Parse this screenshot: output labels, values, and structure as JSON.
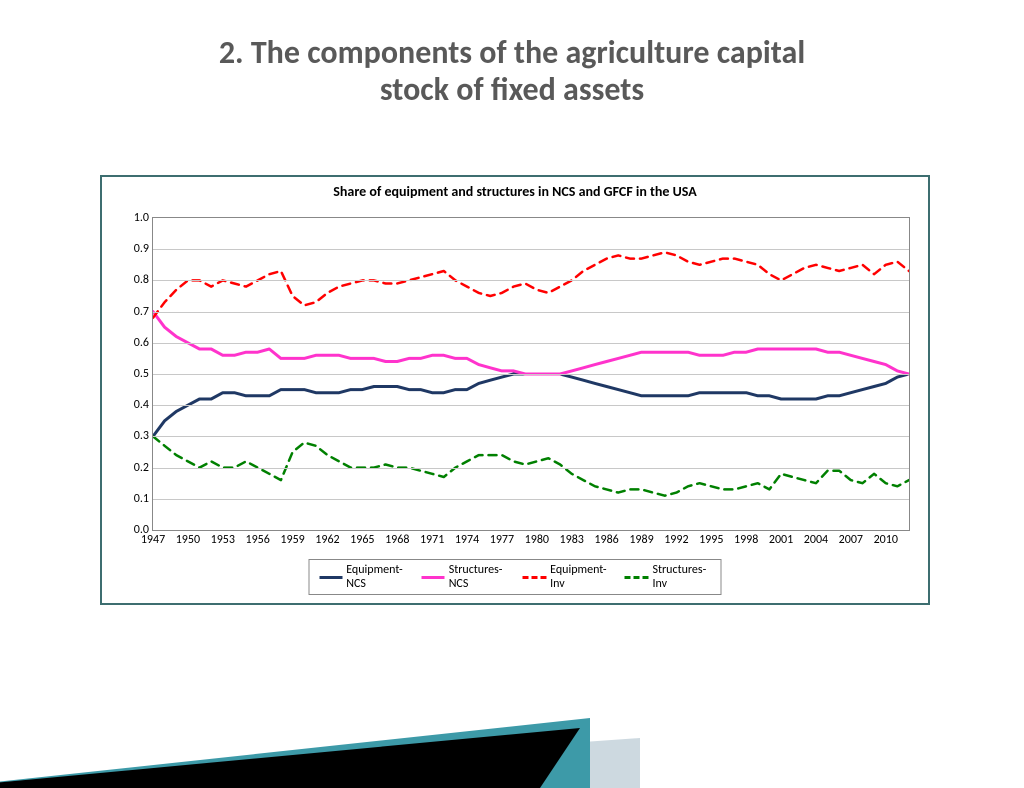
{
  "slide": {
    "title_line1": "2. The components of the agriculture capital",
    "title_line2": "stock of fixed assets",
    "title_fontsize": 32,
    "title_color": "#595959"
  },
  "chart": {
    "type": "line",
    "title": "Share of equipment and structures in NCS and GFCF in the USA",
    "title_fontsize": 14,
    "background_color": "#ffffff",
    "border_color": "#3d6e70",
    "grid_color": "#c8c8c8",
    "plot_border_color": "#888888",
    "x": {
      "min": 1947,
      "max": 2012,
      "tick_start": 1947,
      "tick_step": 3,
      "tick_end": 2010,
      "label_fontsize": 12
    },
    "y": {
      "min": 0.0,
      "max": 1.0,
      "tick_step": 0.1,
      "decimals": 1,
      "label_fontsize": 12
    },
    "years": [
      1947,
      1948,
      1949,
      1950,
      1951,
      1952,
      1953,
      1954,
      1955,
      1956,
      1957,
      1958,
      1959,
      1960,
      1961,
      1962,
      1963,
      1964,
      1965,
      1966,
      1967,
      1968,
      1969,
      1970,
      1971,
      1972,
      1973,
      1974,
      1975,
      1976,
      1977,
      1978,
      1979,
      1980,
      1981,
      1982,
      1983,
      1984,
      1985,
      1986,
      1987,
      1988,
      1989,
      1990,
      1991,
      1992,
      1993,
      1994,
      1995,
      1996,
      1997,
      1998,
      1999,
      2000,
      2001,
      2002,
      2003,
      2004,
      2005,
      2006,
      2007,
      2008,
      2009,
      2010,
      2011,
      2012
    ],
    "series": [
      {
        "name": "Equipment-NCS",
        "color": "#1f3864",
        "width": 3,
        "dash": "none",
        "values": [
          0.3,
          0.35,
          0.38,
          0.4,
          0.42,
          0.42,
          0.44,
          0.44,
          0.43,
          0.43,
          0.43,
          0.45,
          0.45,
          0.45,
          0.44,
          0.44,
          0.44,
          0.45,
          0.45,
          0.46,
          0.46,
          0.46,
          0.45,
          0.45,
          0.44,
          0.44,
          0.45,
          0.45,
          0.47,
          0.48,
          0.49,
          0.5,
          0.5,
          0.5,
          0.5,
          0.5,
          0.49,
          0.48,
          0.47,
          0.46,
          0.45,
          0.44,
          0.43,
          0.43,
          0.43,
          0.43,
          0.43,
          0.44,
          0.44,
          0.44,
          0.44,
          0.44,
          0.43,
          0.43,
          0.42,
          0.42,
          0.42,
          0.42,
          0.43,
          0.43,
          0.44,
          0.45,
          0.46,
          0.47,
          0.49,
          0.5
        ]
      },
      {
        "name": "Structures-NCS",
        "color": "#ff33cc",
        "width": 3,
        "dash": "none",
        "values": [
          0.7,
          0.65,
          0.62,
          0.6,
          0.58,
          0.58,
          0.56,
          0.56,
          0.57,
          0.57,
          0.58,
          0.55,
          0.55,
          0.55,
          0.56,
          0.56,
          0.56,
          0.55,
          0.55,
          0.55,
          0.54,
          0.54,
          0.55,
          0.55,
          0.56,
          0.56,
          0.55,
          0.55,
          0.53,
          0.52,
          0.51,
          0.51,
          0.5,
          0.5,
          0.5,
          0.5,
          0.51,
          0.52,
          0.53,
          0.54,
          0.55,
          0.56,
          0.57,
          0.57,
          0.57,
          0.57,
          0.57,
          0.56,
          0.56,
          0.56,
          0.57,
          0.57,
          0.58,
          0.58,
          0.58,
          0.58,
          0.58,
          0.58,
          0.57,
          0.57,
          0.56,
          0.55,
          0.54,
          0.53,
          0.51,
          0.5
        ]
      },
      {
        "name": "Equipment-Inv",
        "color": "#ff0000",
        "width": 2.5,
        "dash": "8,6",
        "values": [
          0.68,
          0.73,
          0.77,
          0.8,
          0.8,
          0.78,
          0.8,
          0.79,
          0.78,
          0.8,
          0.82,
          0.83,
          0.75,
          0.72,
          0.73,
          0.76,
          0.78,
          0.79,
          0.8,
          0.8,
          0.79,
          0.79,
          0.8,
          0.81,
          0.82,
          0.83,
          0.8,
          0.78,
          0.76,
          0.75,
          0.76,
          0.78,
          0.79,
          0.77,
          0.76,
          0.78,
          0.8,
          0.83,
          0.85,
          0.87,
          0.88,
          0.87,
          0.87,
          0.88,
          0.89,
          0.88,
          0.86,
          0.85,
          0.86,
          0.87,
          0.87,
          0.86,
          0.85,
          0.82,
          0.8,
          0.82,
          0.84,
          0.85,
          0.84,
          0.83,
          0.84,
          0.85,
          0.82,
          0.85,
          0.86,
          0.83
        ]
      },
      {
        "name": "Structures-Inv",
        "color": "#008000",
        "width": 2.5,
        "dash": "8,6",
        "values": [
          0.3,
          0.27,
          0.24,
          0.22,
          0.2,
          0.22,
          0.2,
          0.2,
          0.22,
          0.2,
          0.18,
          0.16,
          0.25,
          0.28,
          0.27,
          0.24,
          0.22,
          0.2,
          0.2,
          0.2,
          0.21,
          0.2,
          0.2,
          0.19,
          0.18,
          0.17,
          0.2,
          0.22,
          0.24,
          0.24,
          0.24,
          0.22,
          0.21,
          0.22,
          0.23,
          0.21,
          0.18,
          0.16,
          0.14,
          0.13,
          0.12,
          0.13,
          0.13,
          0.12,
          0.11,
          0.12,
          0.14,
          0.15,
          0.14,
          0.13,
          0.13,
          0.14,
          0.15,
          0.13,
          0.18,
          0.17,
          0.16,
          0.15,
          0.19,
          0.19,
          0.16,
          0.15,
          0.18,
          0.15,
          0.14,
          0.16
        ]
      }
    ],
    "legend": {
      "border_color": "#888888",
      "fontsize": 12,
      "items": [
        "Equipment-NCS",
        "Structures-NCS",
        "Equipment-Inv",
        "Structures-Inv"
      ]
    }
  },
  "decor": {
    "teal": "#3d9aa8",
    "light": "#cdd9e0",
    "dark": "#000000"
  }
}
